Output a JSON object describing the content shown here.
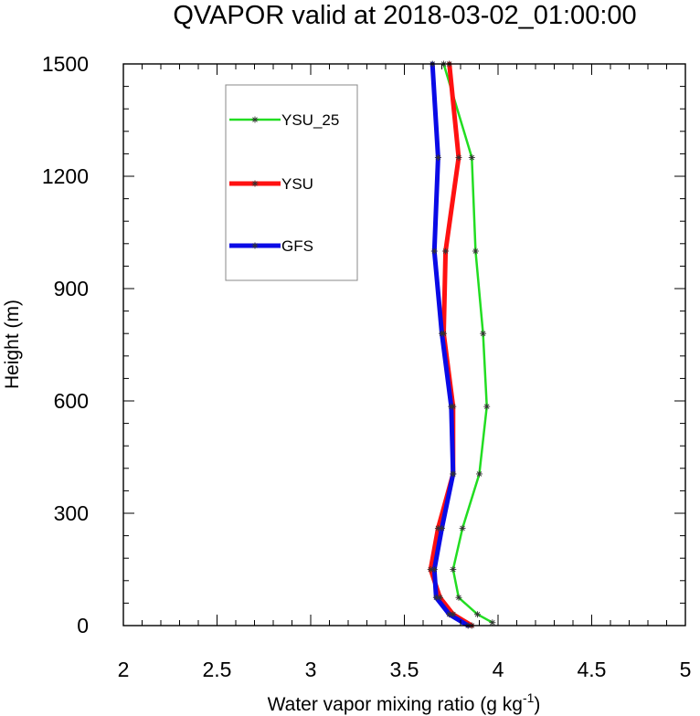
{
  "chart_data": {
    "type": "line",
    "title": "QVAPOR valid at 2018-03-02_01:00:00",
    "xlabel_main": "Water vapor mixing ratio (g kg",
    "xlabel_sup": "-1",
    "xlabel_close": ")",
    "ylabel": "Height (m)",
    "xlim": [
      2,
      5
    ],
    "ylim": [
      0,
      1500
    ],
    "xticks": [
      2,
      2.5,
      3,
      3.5,
      4,
      4.5,
      5
    ],
    "xtick_labels": [
      "2",
      "2.5",
      "3",
      "3.5",
      "4",
      "4.5",
      "5"
    ],
    "yticks": [
      0,
      300,
      600,
      900,
      1200,
      1500
    ],
    "ytick_labels": [
      "0",
      "300",
      "600",
      "900",
      "1200",
      "1500"
    ],
    "grid": false,
    "legend_position": "top-left",
    "series": [
      {
        "name": "YSU_25",
        "color": "#22dd22",
        "points": [
          [
            3.97,
            8
          ],
          [
            3.89,
            30
          ],
          [
            3.79,
            75
          ],
          [
            3.76,
            150
          ],
          [
            3.81,
            260
          ],
          [
            3.9,
            405
          ],
          [
            3.94,
            585
          ],
          [
            3.92,
            780
          ],
          [
            3.88,
            1000
          ],
          [
            3.86,
            1250
          ],
          [
            3.71,
            1500
          ]
        ]
      },
      {
        "name": "YSU",
        "color": "#ff1111",
        "points": [
          [
            3.86,
            0
          ],
          [
            3.76,
            30
          ],
          [
            3.69,
            75
          ],
          [
            3.64,
            150
          ],
          [
            3.68,
            260
          ],
          [
            3.76,
            405
          ],
          [
            3.76,
            585
          ],
          [
            3.71,
            780
          ],
          [
            3.72,
            1000
          ],
          [
            3.79,
            1250
          ],
          [
            3.74,
            1500
          ]
        ]
      },
      {
        "name": "GFS",
        "color": "#0a0ae6",
        "points": [
          [
            3.84,
            0
          ],
          [
            3.74,
            30
          ],
          [
            3.67,
            75
          ],
          [
            3.66,
            150
          ],
          [
            3.7,
            260
          ],
          [
            3.76,
            405
          ],
          [
            3.75,
            585
          ],
          [
            3.7,
            780
          ],
          [
            3.66,
            1000
          ],
          [
            3.68,
            1250
          ],
          [
            3.65,
            1500
          ]
        ]
      }
    ]
  }
}
